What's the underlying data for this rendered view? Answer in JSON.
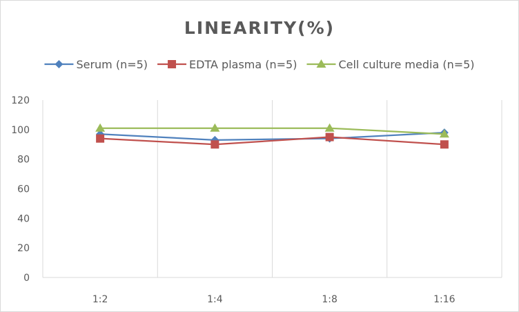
{
  "chart_data": {
    "type": "line",
    "title": "LINEARITY(%)",
    "xlabel": "",
    "ylabel": "",
    "categories": [
      "1:2",
      "1:4",
      "1:8",
      "1:16"
    ],
    "ylim": [
      0,
      120
    ],
    "yticks": [
      0,
      20,
      40,
      60,
      80,
      100,
      120
    ],
    "grid": "vertical",
    "legend_position": "top",
    "series": [
      {
        "name": "Serum (n=5)",
        "values": [
          97,
          93,
          94,
          98
        ],
        "color": "#4f81bd",
        "marker": "diamond"
      },
      {
        "name": "EDTA plasma (n=5)",
        "values": [
          94,
          90,
          95,
          90
        ],
        "color": "#c0504d",
        "marker": "square"
      },
      {
        "name": "Cell culture media (n=5)",
        "values": [
          101,
          101,
          101,
          97
        ],
        "color": "#9bbb59",
        "marker": "triangle"
      }
    ]
  }
}
